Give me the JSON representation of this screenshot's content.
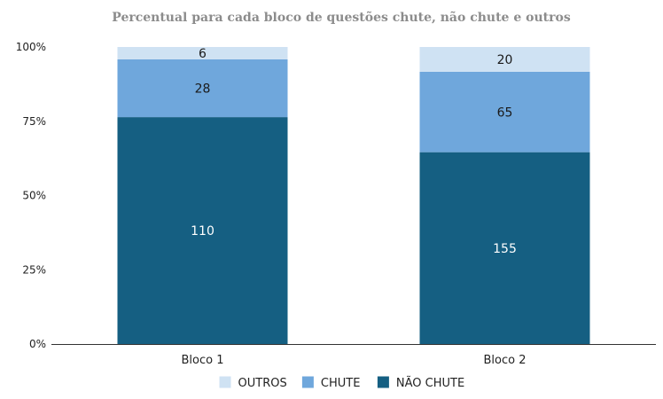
{
  "chart_data": {
    "type": "bar",
    "stacked": true,
    "normalized": true,
    "title": "Percentual para cada bloco de questões chute, não chute e outros",
    "xlabel": "",
    "ylabel": "",
    "ylim": [
      0,
      100
    ],
    "y_ticks": [
      "0%",
      "25%",
      "50%",
      "75%",
      "100%"
    ],
    "y_tick_values": [
      0,
      25,
      50,
      75,
      100
    ],
    "grid": false,
    "legend_position": "bottom",
    "categories": [
      "Bloco 1",
      "Bloco 2"
    ],
    "series": [
      {
        "name": "NÃO CHUTE",
        "values": [
          110,
          155
        ],
        "labels": [
          "110",
          "155"
        ],
        "color": "#155f82",
        "label_color": "#ffffff"
      },
      {
        "name": "CHUTE",
        "values": [
          28,
          65
        ],
        "labels": [
          "28",
          "65"
        ],
        "color": "#6fa7dc",
        "label_color": "#1a1a1a"
      },
      {
        "name": "OUTROS",
        "values": [
          6,
          20
        ],
        "labels": [
          "6",
          "20"
        ],
        "color": "#cfe2f3",
        "label_color": "#1a1a1a"
      }
    ],
    "legend_order": [
      "OUTROS",
      "CHUTE",
      "NÃO CHUTE"
    ]
  }
}
